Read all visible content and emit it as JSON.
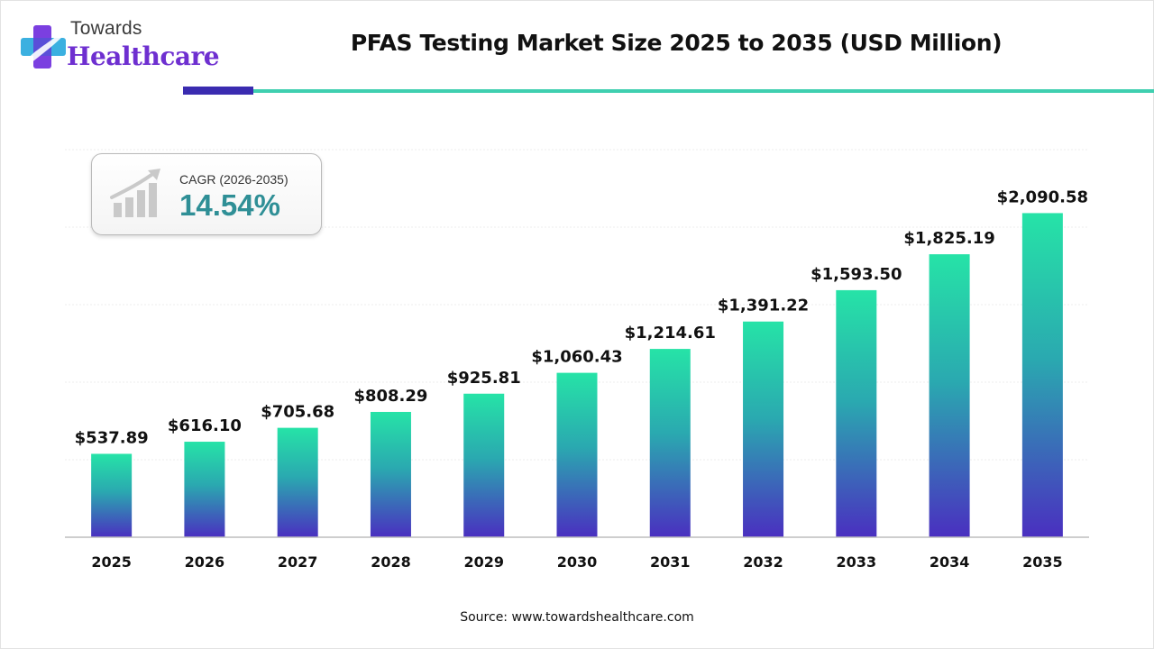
{
  "header": {
    "logo_top": "Towards",
    "logo_bottom": "Healthcare",
    "title": "PFAS Testing Market Size 2025 to 2035 (USD Million)"
  },
  "cagr": {
    "label": "CAGR (2026-2035)",
    "value": "14.54%"
  },
  "chart_data": {
    "type": "bar",
    "title": "PFAS Testing Market Size 2025 to 2035 (USD Million)",
    "xlabel": "",
    "ylabel": "",
    "categories": [
      "2025",
      "2026",
      "2027",
      "2028",
      "2029",
      "2030",
      "2031",
      "2032",
      "2033",
      "2034",
      "2035"
    ],
    "values": [
      537.89,
      616.1,
      705.68,
      808.29,
      925.81,
      1060.43,
      1214.61,
      1391.22,
      1593.5,
      1825.19,
      2090.58
    ],
    "value_labels": [
      "$537.89",
      "$616.10",
      "$705.68",
      "$808.29",
      "$925.81",
      "$1,060.43",
      "$1,214.61",
      "$1,391.22",
      "$1,593.50",
      "$1,825.19",
      "$2,090.58"
    ],
    "ylim": [
      0,
      2500
    ],
    "grid": true,
    "bar_gradient": [
      "#26e3a7",
      "#4a2fc0"
    ]
  },
  "footer": {
    "source": "Source: www.towardshealthcare.com"
  }
}
